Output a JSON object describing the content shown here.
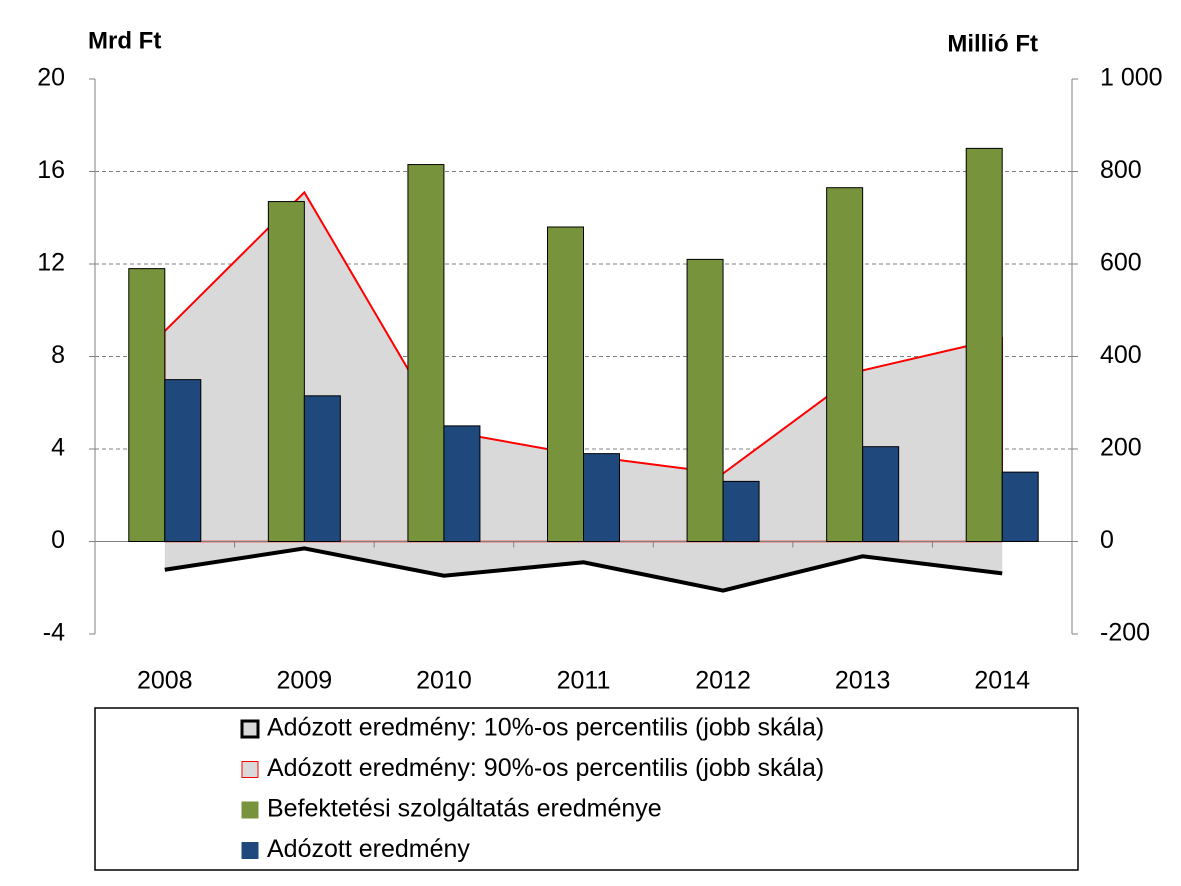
{
  "chart_data": {
    "type": "bar",
    "y_title": "Mrd Ft",
    "y2_title": "Millió Ft",
    "categories": [
      "2008",
      "2009",
      "2010",
      "2011",
      "2012",
      "2013",
      "2014"
    ],
    "ylim": [
      -4,
      20
    ],
    "yticks": [
      -4,
      0,
      4,
      8,
      12,
      16,
      20
    ],
    "y2lim": [
      -200,
      1000
    ],
    "y2ticks": [
      -200,
      0,
      200,
      400,
      600,
      800,
      {
        "value": 1000,
        "label": "1 000"
      }
    ],
    "grid": true,
    "series": [
      {
        "name": "Adózott eredmény: 10%-os percentilis (jobb skála)",
        "type": "area",
        "axis": "y2",
        "color": "#000000",
        "fill": "#d9d9d9",
        "values": [
          -61,
          -15,
          -74,
          -45,
          -106,
          -32,
          -69
        ]
      },
      {
        "name": "Adózott eredmény: 90%-os percentilis (jobb skála)",
        "type": "area",
        "axis": "y2",
        "color": "#ff0000",
        "fill": "#d9d9d9",
        "values": [
          455,
          755,
          240,
          186,
          147,
          370,
          440
        ]
      },
      {
        "name": "Befektetési szolgáltatás eredménye",
        "type": "bar",
        "color": "#77933c",
        "values": [
          11.8,
          14.7,
          16.3,
          13.6,
          12.2,
          15.3,
          17.0
        ]
      },
      {
        "name": "Adózott eredmény",
        "type": "bar",
        "color": "#1f497d",
        "values": [
          7.0,
          6.3,
          5.0,
          3.8,
          2.6,
          4.1,
          3.0
        ]
      }
    ]
  }
}
